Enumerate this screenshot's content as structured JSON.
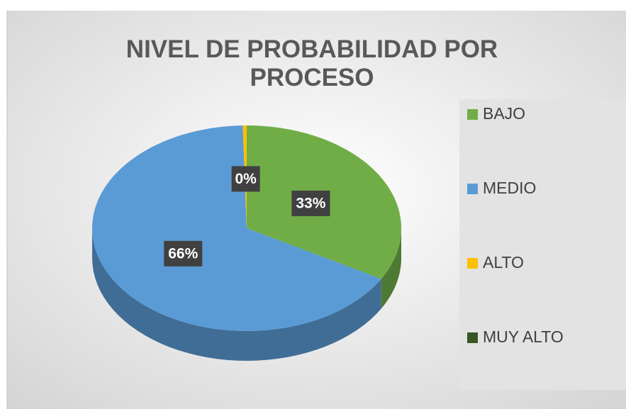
{
  "chart_data": {
    "type": "pie",
    "title": "NIVEL DE PROBABILIDAD POR PROCESO",
    "categories": [
      "BAJO",
      "MEDIO",
      "ALTO",
      "MUY ALTO"
    ],
    "values": [
      33,
      66,
      0.4,
      0
    ],
    "value_labels": [
      "33%",
      "66%",
      "0%",
      null
    ],
    "colors": [
      "#70ad47",
      "#5b9bd5",
      "#ffc000",
      "#375623"
    ],
    "legend": "right"
  }
}
